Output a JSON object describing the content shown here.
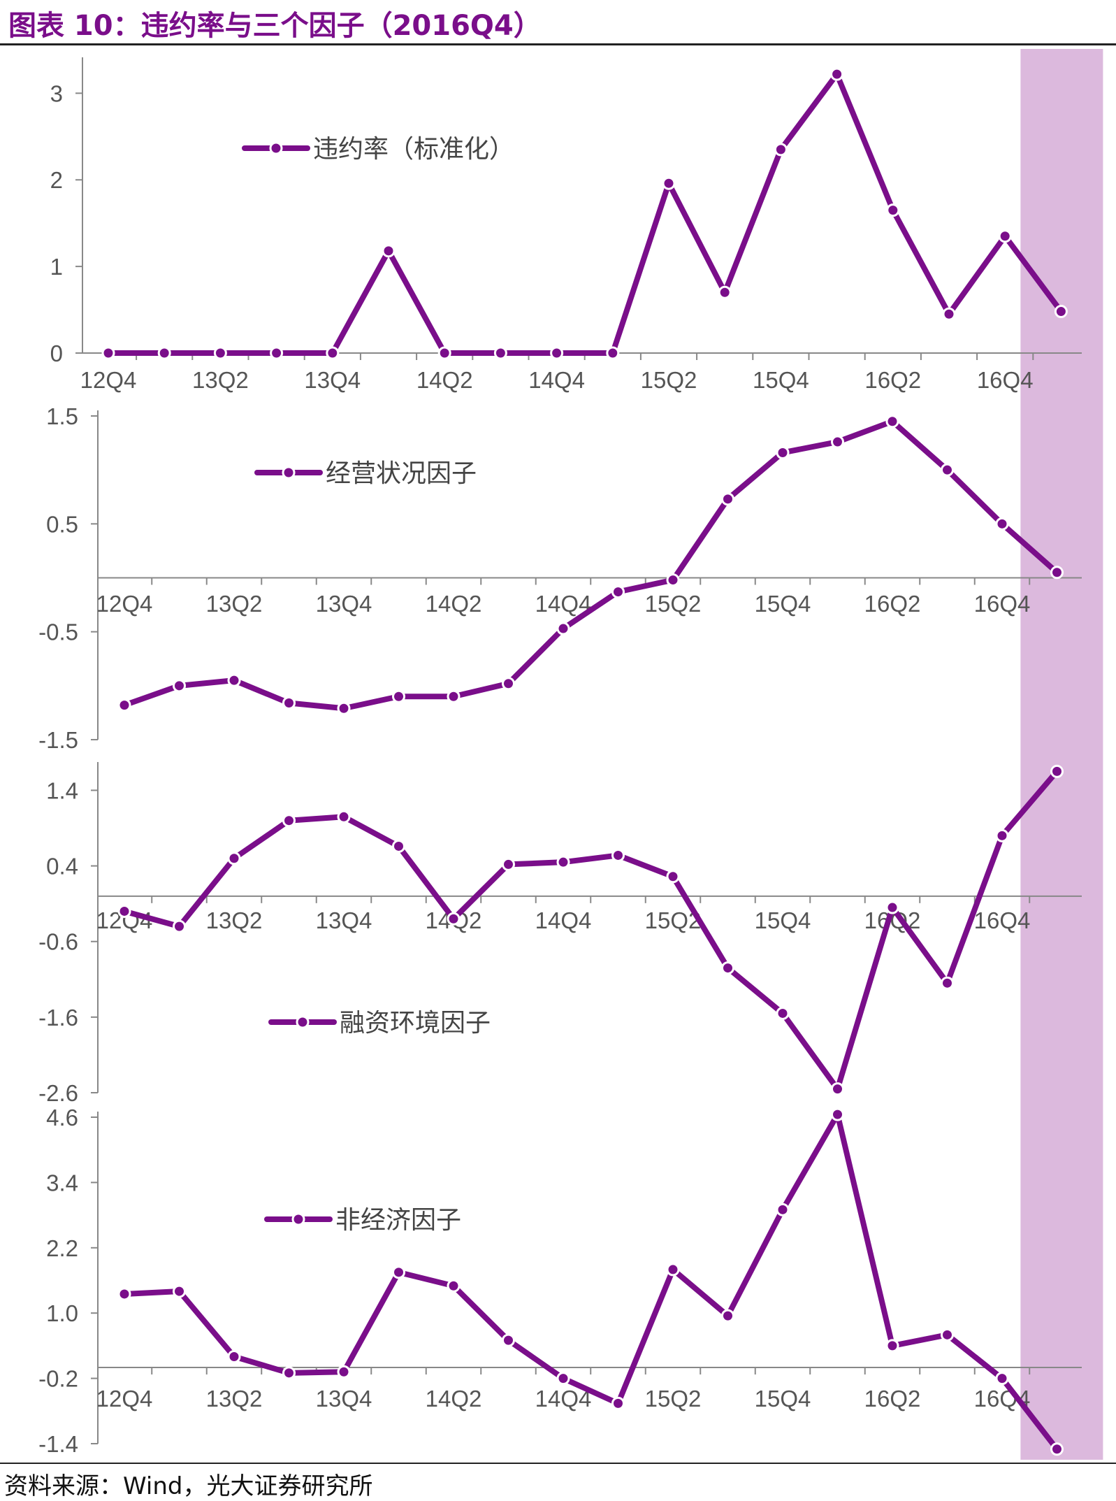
{
  "title": "图表 10：违约率与三个因子（2016Q4）",
  "source": "资料来源：Wind，光大证券研究所",
  "colors": {
    "series": "#7a0e8a",
    "highlight": "#dcb9dd",
    "axis": "#888888",
    "text": "#555555"
  },
  "chart_data": [
    {
      "type": "line",
      "name": "违约率（标准化）",
      "legend": "违约率（标准化）",
      "x": [
        "12Q4",
        "13Q1",
        "13Q2",
        "13Q3",
        "13Q4",
        "14Q1",
        "14Q2",
        "14Q3",
        "14Q4",
        "15Q1",
        "15Q2",
        "15Q3",
        "15Q4",
        "16Q1",
        "16Q2",
        "16Q3",
        "16Q4",
        "17Q1"
      ],
      "values": [
        0,
        0,
        0,
        0,
        0,
        1.18,
        0,
        0,
        0,
        0,
        1.96,
        0.7,
        2.35,
        3.22,
        1.65,
        0.45,
        1.35,
        0.48
      ],
      "yticks": [
        "0",
        "1",
        "2",
        "3"
      ],
      "ytick_values": [
        0,
        1,
        2,
        3
      ],
      "ylim": [
        0,
        3.35
      ],
      "xtick_labels": [
        "12Q4",
        "13Q2",
        "13Q4",
        "14Q2",
        "14Q4",
        "15Q2",
        "15Q4",
        "16Q2",
        "16Q4"
      ],
      "highlight": "17Q1"
    },
    {
      "type": "line",
      "name": "经营状况因子",
      "legend": "经营状况因子",
      "x": [
        "12Q4",
        "13Q1",
        "13Q2",
        "13Q3",
        "13Q4",
        "14Q1",
        "14Q2",
        "14Q3",
        "14Q4",
        "15Q1",
        "15Q2",
        "15Q3",
        "15Q4",
        "16Q1",
        "16Q2",
        "16Q3",
        "16Q4",
        "17Q1"
      ],
      "values": [
        -1.18,
        -1.0,
        -0.95,
        -1.16,
        -1.21,
        -1.1,
        -1.1,
        -0.98,
        -0.47,
        -0.13,
        -0.02,
        0.73,
        1.16,
        1.26,
        1.45,
        1.0,
        0.5,
        0.05
      ],
      "yticks": [
        "1.5",
        "0.5",
        "-0.5",
        "-1.5"
      ],
      "ytick_values": [
        1.5,
        0.5,
        -0.5,
        -1.5
      ],
      "ylim": [
        -1.5,
        1.5
      ],
      "xtick_labels": [
        "12Q4",
        "13Q2",
        "13Q4",
        "14Q2",
        "14Q4",
        "15Q2",
        "15Q4",
        "16Q2",
        "16Q4"
      ],
      "highlight": "17Q1"
    },
    {
      "type": "line",
      "name": "融资环境因子",
      "legend": "融资环境因子",
      "x": [
        "12Q4",
        "13Q1",
        "13Q2",
        "13Q3",
        "13Q4",
        "14Q1",
        "14Q2",
        "14Q3",
        "14Q4",
        "15Q1",
        "15Q2",
        "15Q3",
        "15Q4",
        "16Q1",
        "16Q2",
        "16Q3",
        "16Q4",
        "17Q1"
      ],
      "values": [
        -0.2,
        -0.4,
        0.5,
        1.0,
        1.05,
        0.66,
        -0.3,
        0.42,
        0.45,
        0.54,
        0.26,
        -0.95,
        -1.55,
        -2.55,
        -0.15,
        -1.15,
        0.8,
        1.65
      ],
      "yticks": [
        "1.4",
        "0.4",
        "-0.6",
        "-1.6",
        "-2.6"
      ],
      "ytick_values": [
        1.4,
        0.4,
        -0.6,
        -1.6,
        -2.6
      ],
      "ylim": [
        -2.6,
        1.7
      ],
      "xtick_labels": [
        "12Q4",
        "13Q2",
        "13Q4",
        "14Q2",
        "14Q4",
        "15Q2",
        "15Q4",
        "16Q2",
        "16Q4"
      ],
      "highlight": "17Q1"
    },
    {
      "type": "line",
      "name": "非经济因子",
      "legend": "非经济因子",
      "x": [
        "12Q4",
        "13Q1",
        "13Q2",
        "13Q3",
        "13Q4",
        "14Q1",
        "14Q2",
        "14Q3",
        "14Q4",
        "15Q1",
        "15Q2",
        "15Q3",
        "15Q4",
        "16Q1",
        "16Q2",
        "16Q3",
        "16Q4",
        "17Q1"
      ],
      "values": [
        1.35,
        1.4,
        0.2,
        -0.1,
        -0.08,
        1.75,
        1.5,
        0.5,
        -0.2,
        -0.66,
        1.8,
        0.95,
        2.9,
        4.65,
        0.4,
        0.6,
        -0.2,
        -1.5
      ],
      "yticks": [
        "4.6",
        "3.4",
        "2.2",
        "1.0",
        "-0.2",
        "-1.4"
      ],
      "ytick_values": [
        4.6,
        3.4,
        2.2,
        1.0,
        -0.2,
        -1.4
      ],
      "ylim": [
        -1.4,
        4.6
      ],
      "xtick_labels": [
        "12Q4",
        "13Q2",
        "13Q4",
        "14Q2",
        "14Q4",
        "15Q2",
        "15Q4",
        "16Q2",
        "16Q4"
      ],
      "highlight": "17Q1"
    }
  ]
}
